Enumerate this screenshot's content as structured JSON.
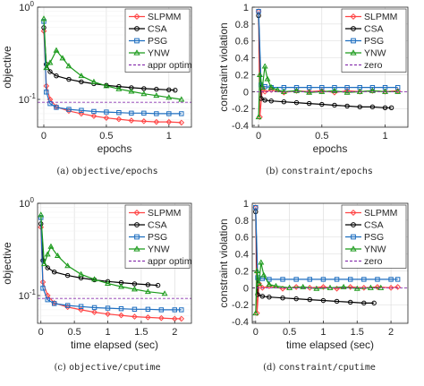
{
  "colors": {
    "SLPMM": "#ff4444",
    "CSA": "#000000",
    "PSG": "#1f6fc0",
    "YNW": "#1a9a1a",
    "reference": "#8b35b0"
  },
  "captions": [
    {
      "prefix": "(a) ",
      "code": "objective/epochs"
    },
    {
      "prefix": "(b) ",
      "code": "constraint/epochs"
    },
    {
      "prefix": "(c) ",
      "code": "objective/cputime"
    },
    {
      "prefix": "(d) ",
      "code": "constraint/cputime"
    }
  ],
  "chart_data": [
    {
      "type": "line",
      "ylabel": "objective",
      "xlabel": "epochs",
      "yscale": "log",
      "xlim": [
        -0.05,
        1.18
      ],
      "ylim": [
        0.05,
        1
      ],
      "xticks": [
        0,
        0.5,
        1
      ],
      "xticklabels": [
        "0",
        "0.5",
        "1"
      ],
      "yticks": [
        0.1,
        1
      ],
      "yticklabels": [
        "10^-1",
        "10^0"
      ],
      "grid": true,
      "legend_position": "top-right",
      "series": [
        {
          "name": "SLPMM",
          "marker": "diamond",
          "x": [
            0,
            0.02,
            0.05,
            0.1,
            0.2,
            0.3,
            0.4,
            0.5,
            0.6,
            0.7,
            0.8,
            0.9,
            1.0,
            1.1
          ],
          "y": [
            0.55,
            0.14,
            0.1,
            0.083,
            0.075,
            0.07,
            0.066,
            0.063,
            0.061,
            0.059,
            0.058,
            0.057,
            0.057,
            0.056
          ]
        },
        {
          "name": "CSA",
          "marker": "circle",
          "x": [
            0,
            0.02,
            0.05,
            0.1,
            0.2,
            0.3,
            0.4,
            0.5,
            0.6,
            0.7,
            0.8,
            0.9,
            1.0,
            1.05
          ],
          "y": [
            0.6,
            0.24,
            0.2,
            0.18,
            0.165,
            0.155,
            0.148,
            0.142,
            0.138,
            0.134,
            0.131,
            0.129,
            0.127,
            0.126
          ]
        },
        {
          "name": "PSG",
          "marker": "square",
          "x": [
            0,
            0.02,
            0.05,
            0.1,
            0.2,
            0.3,
            0.4,
            0.5,
            0.6,
            0.7,
            0.8,
            0.9,
            1.0,
            1.1
          ],
          "y": [
            0.7,
            0.12,
            0.09,
            0.082,
            0.078,
            0.076,
            0.074,
            0.073,
            0.072,
            0.071,
            0.071,
            0.07,
            0.07,
            0.07
          ]
        },
        {
          "name": "YNW",
          "marker": "triangle",
          "x": [
            0,
            0.02,
            0.05,
            0.1,
            0.15,
            0.2,
            0.3,
            0.4,
            0.5,
            0.6,
            0.7,
            0.8,
            0.9,
            1.0,
            1.1
          ],
          "y": [
            0.75,
            0.22,
            0.25,
            0.34,
            0.28,
            0.23,
            0.18,
            0.155,
            0.14,
            0.13,
            0.122,
            0.115,
            0.11,
            0.105,
            0.1
          ]
        },
        {
          "name": "appr optim",
          "style": "dashed",
          "x": [
            -0.05,
            1.18
          ],
          "y": [
            0.093,
            0.093
          ]
        }
      ]
    },
    {
      "type": "line",
      "ylabel": "constraint violation",
      "xlabel": "epochs",
      "xlim": [
        -0.05,
        1.18
      ],
      "ylim": [
        -0.42,
        1.0
      ],
      "xticks": [
        0,
        0.5,
        1
      ],
      "xticklabels": [
        "0",
        "0.5",
        "1"
      ],
      "yticks": [
        -0.4,
        -0.2,
        0,
        0.2,
        0.4,
        0.6,
        0.8,
        1
      ],
      "yticklabels": [
        "-0.4",
        "-0.2",
        "0",
        "0.2",
        "0.4",
        "0.6",
        "0.8",
        "1"
      ],
      "grid": true,
      "legend_position": "top-right",
      "series": [
        {
          "name": "SLPMM",
          "marker": "diamond",
          "x": [
            0,
            0.01,
            0.03,
            0.05,
            0.1,
            0.2,
            0.3,
            0.4,
            0.5,
            0.6,
            0.7,
            0.8,
            0.9,
            1.0,
            1.1
          ],
          "y": [
            0.95,
            -0.3,
            0.05,
            0.0,
            0.02,
            -0.01,
            0.01,
            0.0,
            0.01,
            -0.01,
            0.01,
            0.0,
            0.01,
            0.0,
            0.01
          ]
        },
        {
          "name": "CSA",
          "marker": "circle",
          "x": [
            0,
            0.02,
            0.05,
            0.1,
            0.2,
            0.3,
            0.4,
            0.5,
            0.6,
            0.7,
            0.8,
            0.9,
            1.0,
            1.05
          ],
          "y": [
            0.9,
            -0.08,
            -0.1,
            -0.11,
            -0.12,
            -0.13,
            -0.14,
            -0.15,
            -0.16,
            -0.17,
            -0.18,
            -0.18,
            -0.19,
            -0.19
          ]
        },
        {
          "name": "PSG",
          "marker": "square",
          "x": [
            0,
            0.02,
            0.05,
            0.1,
            0.2,
            0.3,
            0.4,
            0.5,
            0.6,
            0.7,
            0.8,
            0.9,
            1.0,
            1.1
          ],
          "y": [
            0.95,
            0.08,
            0.06,
            0.05,
            0.05,
            0.05,
            0.05,
            0.05,
            0.05,
            0.05,
            0.05,
            0.05,
            0.05,
            0.05
          ]
        },
        {
          "name": "YNW",
          "marker": "triangle",
          "x": [
            0,
            0.01,
            0.03,
            0.05,
            0.07,
            0.1,
            0.15,
            0.2,
            0.3,
            0.4,
            0.5,
            0.6,
            0.7,
            0.8,
            0.9,
            1.0,
            1.1
          ],
          "y": [
            -0.3,
            0.2,
            0.05,
            0.3,
            0.15,
            0.05,
            0.02,
            0.0,
            0.01,
            -0.01,
            0.0,
            0.01,
            -0.01,
            0.0,
            0.01,
            0.0,
            0.0
          ]
        },
        {
          "name": "zero",
          "style": "dashed",
          "x": [
            -0.05,
            1.18
          ],
          "y": [
            0,
            0
          ]
        }
      ]
    },
    {
      "type": "line",
      "ylabel": "objective",
      "xlabel": "time elapsed (sec)",
      "yscale": "log",
      "xlim": [
        -0.05,
        2.25
      ],
      "ylim": [
        0.05,
        1
      ],
      "xticks": [
        0,
        0.5,
        1,
        1.5,
        2
      ],
      "xticklabels": [
        "0",
        "0.5",
        "1",
        "1.5",
        "2"
      ],
      "yticks": [
        0.1,
        1
      ],
      "yticklabels": [
        "10^-1",
        "10^0"
      ],
      "grid": true,
      "legend_position": "top-right",
      "series": [
        {
          "name": "SLPMM",
          "marker": "diamond",
          "x": [
            0,
            0.03,
            0.1,
            0.2,
            0.4,
            0.6,
            0.8,
            1.0,
            1.2,
            1.4,
            1.6,
            1.8,
            2.0,
            2.1
          ],
          "y": [
            0.55,
            0.14,
            0.1,
            0.083,
            0.075,
            0.07,
            0.066,
            0.063,
            0.061,
            0.059,
            0.058,
            0.057,
            0.056,
            0.056
          ]
        },
        {
          "name": "CSA",
          "marker": "circle",
          "x": [
            0,
            0.03,
            0.1,
            0.2,
            0.4,
            0.6,
            0.8,
            1.0,
            1.2,
            1.4,
            1.6,
            1.75
          ],
          "y": [
            0.6,
            0.24,
            0.2,
            0.18,
            0.165,
            0.155,
            0.148,
            0.142,
            0.138,
            0.134,
            0.131,
            0.129
          ]
        },
        {
          "name": "PSG",
          "marker": "square",
          "x": [
            0,
            0.03,
            0.1,
            0.2,
            0.4,
            0.6,
            0.8,
            1.0,
            1.2,
            1.4,
            1.6,
            1.8,
            2.0,
            2.1
          ],
          "y": [
            0.7,
            0.12,
            0.09,
            0.082,
            0.078,
            0.076,
            0.074,
            0.073,
            0.072,
            0.071,
            0.071,
            0.07,
            0.07,
            0.07
          ]
        },
        {
          "name": "YNW",
          "marker": "triangle",
          "x": [
            0,
            0.05,
            0.1,
            0.15,
            0.25,
            0.4,
            0.6,
            0.8,
            1.0,
            1.2,
            1.4,
            1.6,
            1.85
          ],
          "y": [
            0.75,
            0.22,
            0.28,
            0.34,
            0.27,
            0.21,
            0.17,
            0.15,
            0.135,
            0.125,
            0.117,
            0.11,
            0.105
          ]
        },
        {
          "name": "appr optim",
          "style": "dashed",
          "x": [
            -0.05,
            2.25
          ],
          "y": [
            0.093,
            0.093
          ]
        }
      ]
    },
    {
      "type": "line",
      "ylabel": "constraint violation",
      "xlabel": "time elapsed (sec)",
      "xlim": [
        -0.05,
        2.25
      ],
      "ylim": [
        -0.42,
        1.0
      ],
      "xticks": [
        0,
        0.5,
        1,
        1.5,
        2
      ],
      "xticklabels": [
        "0",
        "0.5",
        "1",
        "1.5",
        "2"
      ],
      "yticks": [
        -0.4,
        -0.2,
        0,
        0.2,
        0.4,
        0.6,
        0.8,
        1
      ],
      "yticklabels": [
        "-0.4",
        "-0.2",
        "0",
        "0.2",
        "0.4",
        "0.6",
        "0.8",
        "1"
      ],
      "grid": true,
      "legend_position": "top-right",
      "series": [
        {
          "name": "SLPMM",
          "marker": "diamond",
          "x": [
            0,
            0.02,
            0.05,
            0.1,
            0.2,
            0.4,
            0.6,
            0.8,
            1.0,
            1.2,
            1.4,
            1.6,
            1.8,
            2.0,
            2.1
          ],
          "y": [
            0.95,
            -0.3,
            0.05,
            0.0,
            0.02,
            -0.01,
            0.01,
            0.0,
            0.01,
            -0.01,
            0.01,
            0.0,
            0.01,
            0.0,
            0.01
          ]
        },
        {
          "name": "CSA",
          "marker": "circle",
          "x": [
            0,
            0.03,
            0.1,
            0.2,
            0.4,
            0.6,
            0.8,
            1.0,
            1.2,
            1.4,
            1.6,
            1.75
          ],
          "y": [
            0.9,
            -0.08,
            -0.1,
            -0.11,
            -0.12,
            -0.13,
            -0.14,
            -0.15,
            -0.16,
            -0.17,
            -0.18,
            -0.18
          ]
        },
        {
          "name": "PSG",
          "marker": "square",
          "x": [
            0,
            0.03,
            0.1,
            0.2,
            0.4,
            0.6,
            0.8,
            1.0,
            1.2,
            1.4,
            1.6,
            1.8,
            2.0,
            2.1
          ],
          "y": [
            0.95,
            0.12,
            0.11,
            0.1,
            0.1,
            0.1,
            0.1,
            0.1,
            0.1,
            0.1,
            0.1,
            0.1,
            0.1,
            0.1
          ]
        },
        {
          "name": "YNW",
          "marker": "triangle",
          "x": [
            0,
            0.02,
            0.05,
            0.08,
            0.12,
            0.2,
            0.3,
            0.5,
            0.7,
            0.9,
            1.1,
            1.3,
            1.5,
            1.7,
            1.85
          ],
          "y": [
            -0.3,
            0.2,
            0.05,
            0.3,
            0.15,
            0.04,
            0.02,
            0.0,
            0.01,
            -0.01,
            0.0,
            0.01,
            -0.01,
            0.0,
            0.0
          ]
        },
        {
          "name": "zero",
          "style": "dashed",
          "x": [
            -0.05,
            2.25
          ],
          "y": [
            0,
            0
          ]
        }
      ]
    }
  ]
}
